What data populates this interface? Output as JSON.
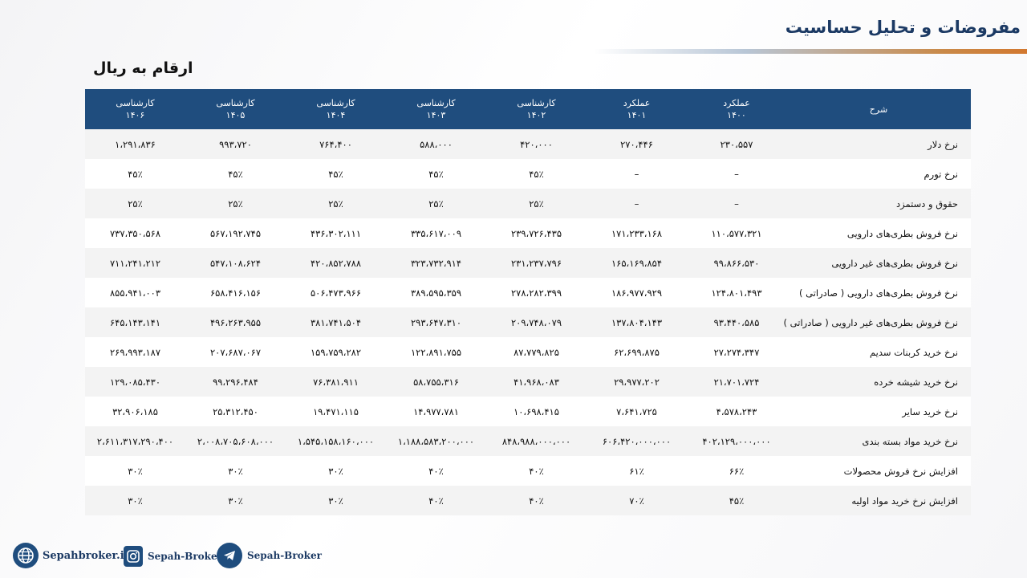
{
  "slide": {
    "title": "مفروضات و تحلیل حساسیت",
    "units": "ارقام به ریال"
  },
  "table": {
    "label_header": "شرح",
    "headers": [
      {
        "top": "عملکرد",
        "bottom": "۱۴۰۰"
      },
      {
        "top": "عملکرد",
        "bottom": "۱۴۰۱"
      },
      {
        "top": "کارشناسی",
        "bottom": "۱۴۰۲"
      },
      {
        "top": "کارشناسی",
        "bottom": "۱۴۰۳"
      },
      {
        "top": "کارشناسی",
        "bottom": "۱۴۰۴"
      },
      {
        "top": "کارشناسی",
        "bottom": "۱۴۰۵"
      },
      {
        "top": "کارشناسی",
        "bottom": "۱۴۰۶"
      }
    ],
    "rows": [
      {
        "label": "نرخ دلار",
        "values": [
          "۲۳۰،۵۵۷",
          "۲۷۰،۴۴۶",
          "۴۲۰،۰۰۰",
          "۵۸۸،۰۰۰",
          "۷۶۴،۴۰۰",
          "۹۹۳،۷۲۰",
          "۱،۲۹۱،۸۳۶"
        ]
      },
      {
        "label": "نرخ تورم",
        "values": [
          "–",
          "–",
          "۴۵٪",
          "۴۵٪",
          "۴۵٪",
          "۴۵٪",
          "۴۵٪"
        ]
      },
      {
        "label": "حقوق و دستمزد",
        "values": [
          "–",
          "–",
          "۲۵٪",
          "۲۵٪",
          "۲۵٪",
          "۲۵٪",
          "۲۵٪"
        ]
      },
      {
        "label": "نرخ فروش بطری‌های دارویی",
        "values": [
          "۱۱۰،۵۷۷،۳۲۱",
          "۱۷۱،۲۳۳،۱۶۸",
          "۲۳۹،۷۲۶،۴۳۵",
          "۳۳۵،۶۱۷،۰۰۹",
          "۴۳۶،۳۰۲،۱۱۱",
          "۵۶۷،۱۹۲،۷۴۵",
          "۷۳۷،۳۵۰،۵۶۸"
        ]
      },
      {
        "label": "نرخ فروش بطری‌های غیر دارویی",
        "values": [
          "۹۹،۸۶۶،۵۳۰",
          "۱۶۵،۱۶۹،۸۵۴",
          "۲۳۱،۲۳۷،۷۹۶",
          "۳۲۳،۷۳۲،۹۱۴",
          "۴۲۰،۸۵۲،۷۸۸",
          "۵۴۷،۱۰۸،۶۲۴",
          "۷۱۱،۲۴۱،۲۱۲"
        ]
      },
      {
        "label": "نرخ فروش بطری‌های دارویی ( صادراتی )",
        "values": [
          "۱۲۴،۸۰۱،۴۹۳",
          "۱۸۶،۹۷۷،۹۲۹",
          "۲۷۸،۲۸۲،۳۹۹",
          "۳۸۹،۵۹۵،۳۵۹",
          "۵۰۶،۴۷۳،۹۶۶",
          "۶۵۸،۴۱۶،۱۵۶",
          "۸۵۵،۹۴۱،۰۰۳"
        ]
      },
      {
        "label": "نرخ فروش بطری‌های غیر دارویی ( صادراتی )",
        "values": [
          "۹۳،۴۴۰،۵۸۵",
          "۱۳۷،۸۰۴،۱۴۳",
          "۲۰۹،۷۴۸،۰۷۹",
          "۲۹۳،۶۴۷،۳۱۰",
          "۳۸۱،۷۴۱،۵۰۴",
          "۴۹۶،۲۶۳،۹۵۵",
          "۶۴۵،۱۴۳،۱۴۱"
        ]
      },
      {
        "label": "نرخ خرید کربنات سدیم",
        "values": [
          "۲۷،۲۷۴،۳۴۷",
          "۶۲،۶۹۹،۸۷۵",
          "۸۷،۷۷۹،۸۲۵",
          "۱۲۲،۸۹۱،۷۵۵",
          "۱۵۹،۷۵۹،۲۸۲",
          "۲۰۷،۶۸۷،۰۶۷",
          "۲۶۹،۹۹۳،۱۸۷"
        ]
      },
      {
        "label": "نرخ خرید شیشه خرده",
        "values": [
          "۲۱،۷۰۱،۷۲۴",
          "۲۹،۹۷۷،۲۰۲",
          "۴۱،۹۶۸،۰۸۳",
          "۵۸،۷۵۵،۳۱۶",
          "۷۶،۳۸۱،۹۱۱",
          "۹۹،۲۹۶،۴۸۴",
          "۱۲۹،۰۸۵،۴۳۰"
        ]
      },
      {
        "label": "نرخ خرید سایر",
        "values": [
          "۴،۵۷۸،۲۴۳",
          "۷،۶۴۱،۷۲۵",
          "۱۰،۶۹۸،۴۱۵",
          "۱۴،۹۷۷،۷۸۱",
          "۱۹،۴۷۱،۱۱۵",
          "۲۵،۳۱۲،۴۵۰",
          "۳۲،۹۰۶،۱۸۵"
        ]
      },
      {
        "label": "نرخ خرید مواد بسته بندی",
        "values": [
          "۴۰۲،۱۲۹،۰۰۰،۰۰۰",
          "۶۰۶،۴۲۰،۰۰۰،۰۰۰",
          "۸۴۸،۹۸۸،۰۰۰،۰۰۰",
          "۱،۱۸۸،۵۸۳،۲۰۰،۰۰۰",
          "۱،۵۴۵،۱۵۸،۱۶۰،۰۰۰",
          "۲،۰۰۸،۷۰۵،۶۰۸،۰۰۰",
          "۲،۶۱۱،۳۱۷،۲۹۰،۴۰۰"
        ]
      },
      {
        "label": "افزایش نرخ فروش محصولات",
        "values": [
          "۶۶٪",
          "۶۱٪",
          "۴۰٪",
          "۴۰٪",
          "۳۰٪",
          "۳۰٪",
          "۳۰٪"
        ]
      },
      {
        "label": "افزایش نرخ خرید مواد اولیه",
        "values": [
          "۴۵٪",
          "۷۰٪",
          "۴۰٪",
          "۴۰٪",
          "۳۰٪",
          "۳۰٪",
          "۳۰٪"
        ]
      }
    ]
  },
  "footer": {
    "website": "Sepahbroker.ir",
    "instagram": "Sepah-Broker",
    "telegram": "Sepah-Broker"
  },
  "colors": {
    "header_bg": "#1f4d7e",
    "title": "#1c3a64",
    "accent": "#d2782f"
  }
}
